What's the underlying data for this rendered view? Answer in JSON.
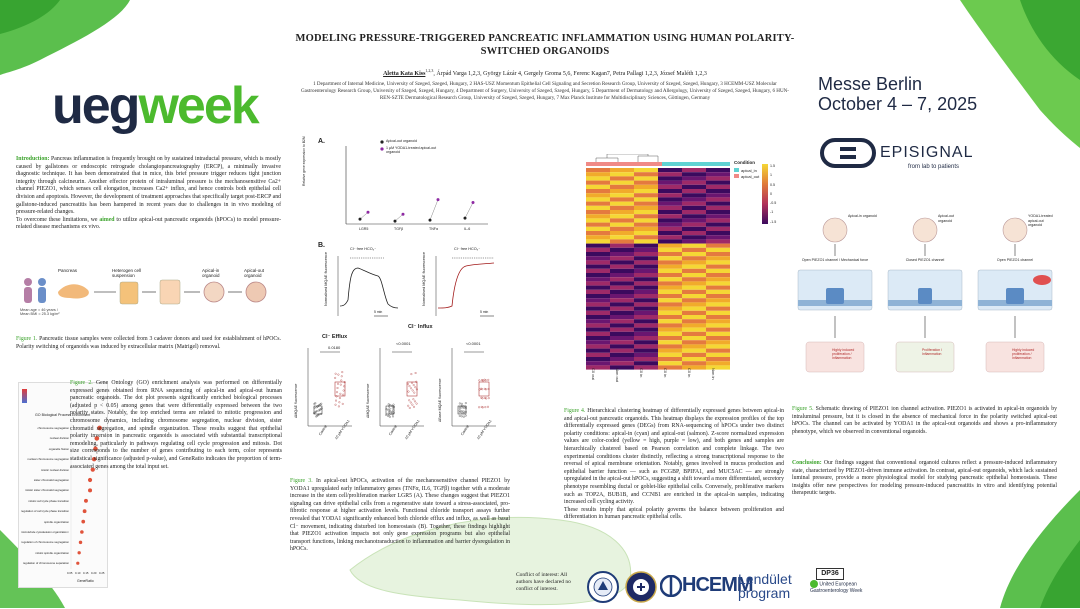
{
  "title": "MODELING PRESSURE-TRIGGERED PANCREATIC INFLAMMATION USING HUMAN POLARITY-SWITCHED ORGANOIDS",
  "authors": {
    "presenter": "Aletta Kata Kiss",
    "presenter_sup": "1,2,3",
    "others": ", Árpád Varga 1,2,3, György Lázár 4, Gergely Groma 5,6, Ferenc Kagan7, Petra Pallagi 1,2,3, József Maléth 1,2,3"
  },
  "affiliations": "1 Department of Internal Medicine, University of Szeged, Szeged, Hungary, 2 HAS-USZ Momentum Epithelial Cell Signaling and Secretion Research Group, University of Szeged, Szeged, Hungary, 3 HCEMM-USZ Molecular Gastroenterology Research Group, University of Szeged, Szeged, Hungary, 4 Department of Surgery, University of Szeged, Szeged, Hungary, 5 Department of Dermatology and Allergology, University of Szeged, Szeged, Hungary, 6 HUN-REN-SZTE Dermatological Research Group, University of Szeged, Szeged, Hungary, 7 Max Planck Institute for Multidisciplinary Sciences, Göttingen, Germany",
  "brand": {
    "ueg": "ueg",
    "week": "week",
    "messe_line1": "Messe Berlin",
    "messe_line2": "October 4 – 7, 2025",
    "episignal": "EPISIGNAL",
    "episignal_tag": "from lab to patients"
  },
  "intro": {
    "label": "Introduction:",
    "text": " Pancreas inflammation is frequently brought on by sustained intraductal pressure, which is mostly caused by gallstones or endoscopic retrograde cholangiopancreatography (ERCP), a minimally invasive diagnostic technique. It has been demonstrated that in mice, this brief pressure trigger reduces tight junction integrity through calcineurin. Another effector protein of intraluminal pressure is the mechanosensitive Ca2+ channel PIEZO1, which senses cell elongation, increases Ca2+ influx, and hence controls both epithelial cell division and apoptosis. However, the development of treatment approaches that specifically target post-ERCP and gallstone-induced pancreatitis has been hampered in recent years due to challenges in in vivo modeling of pressure-related changes.",
    "aim_pre": "To overcome these limitations, we ",
    "aim_word": "aimed",
    "aim_post": " to utilize apical-out pancreatic organoids (hPOCs) to model pressure-related disease mechanisms ex vivo."
  },
  "fig1": {
    "steps": [
      "Pancreas",
      "Heterogen cell suspension",
      "Apical-in organoid",
      "Apical-out organoid"
    ],
    "note": "Mean age = 46 years / Mean BMI = 25.3 kg/m²",
    "caption_label": "Figure 1.",
    "caption": " Pancreatic tissue samples were collected from 3 cadaver donors and used for establishment of hPOCs. Polarity switching of organoids was induced by extracellular matrix (Matrigel) removal."
  },
  "fig2": {
    "chart_title": "GO Biological Process Enrichment",
    "terms": [
      "chromosome segregation",
      "nuclear division",
      "organelle fission",
      "nuclear chromosome segregation",
      "mitotic nuclear division",
      "sister chromatid segregation",
      "mitotic sister chromatid segregation",
      "mitotic cell cycle phase transition",
      "regulation of cell cycle phase transition",
      "spindle organization",
      "microtubule cytoskeleton organization involved in mitosis",
      "regulation of chromosome segregation",
      "mitotic spindle organization",
      "regulation of chromosome separation"
    ],
    "xaxis": "GeneRatio",
    "xticks": [
      "0.05",
      "0.10",
      "0.15",
      "0.20",
      "0.25"
    ],
    "caption_label": "Figure 2.",
    "caption": " Gene Ontology (GO) enrichment analysis was performed on differentially expressed genes obtained from RNA sequencing of apical-in and apical-out human pancreatic organoids. The dot plot presents significantly enriched biological processes (adjusted p < 0.05) among genes that were differentially expressed between the two polarity states. Notably, the top enriched terms are related to mitotic progression and chromosome dynamics, including chromosome segregation, nuclear division, sister chromatid segregation, and spindle organization. These results suggest that epithelial polarity inversion in pancreatic organoids is associated with substantial transcriptional remodeling, particularly in pathways regulating cell cycle progression and mitosis. Dot size corresponds to the number of genes contributing to each term, color represents statistical significance (adjusted p-value), and GeneRatio indicates the proportion of term-associated genes among the total input set."
  },
  "fig3": {
    "legend_a": [
      "Apical-out organoid",
      "1 µM YODA1-treated apical-out organoid"
    ],
    "a_xlabels": [
      "LGR5",
      "TGFβ",
      "TNFα",
      "IL-6"
    ],
    "a_ylabel": "Relative gene expression to B2M",
    "b_label_left": "Cl⁻ free HCO₃⁻",
    "b_label_right": "Cl⁻ free HCO₃⁻",
    "b_ylabel": "Normalised MQAE fluorescence",
    "b_scale": "5 min",
    "influx_title": "Cl⁻ Influx",
    "efflux_title": "Cl⁻ Efflux",
    "pvals": [
      "0.0180",
      "<0.0001",
      "<0.0001"
    ],
    "c_ylabels": [
      "ΔMQAE fluorescence",
      "ΔMQAE fluorescence",
      "ΔBase MQAE fluorescence"
    ],
    "c_xlabels": [
      "Control",
      "10 µM YODA1"
    ],
    "caption_label": "Figure 3.",
    "caption": " In apical-out hPOCs, activation of the mechanosensitive channel PIEZO1 by YODA1 upregulated early inflammatory genes (TNFα, IL6, TGFβ) together with a moderate increase in the stem cell/proliferation marker LGR5 (A). These changes suggest that PIEZO1 signaling can drive epithelial cells from a regenerative state toward a stress-associated, pro-fibrotic response at higher activation levels. Functional chloride transport assays further revealed that YODA1 significantly enhanced both chloride efflux and influx, as well as basal Cl⁻ movement, indicating disturbed ion homeostasis (B). Together, these findings highlight that PIEZO1 activation impacts not only gene expression programs but also epithelial transport functions, linking mechanotransduction to inflammation and barrier dysregulation in hPOCs."
  },
  "fig4": {
    "legend_title": "Condition",
    "legend_items": [
      "apical_in",
      "apical_out"
    ],
    "scale_ticks": [
      "1.5",
      "1",
      "0.5",
      "0",
      "-0.5",
      "-1",
      "-1.5"
    ],
    "col_labels": [
      "C0 out",
      "Non out",
      "C0 in",
      "C0 in",
      "C0 in",
      "Non in"
    ],
    "caption_label": "Figure 4.",
    "caption": " Hierarchical clustering heatmap of differentially expressed genes between apical-in and apical-out pancreatic organoids. This heatmap displays the expression profiles of the top differentially expressed genes (DEGs) from RNA-sequencing of hPOCs under two distinct polarity conditions: apical-in (cyan) and apical-out (salmon). Z-score normalized expression values are color-coded (yellow = high, purple = low), and both genes and samples are hierarchically clustered based on Pearson correlation and complete linkage. The two experimental conditions cluster distinctly, reflecting a strong transcriptional response to the reversal of apical membrane orientation. Notably, genes involved in mucus production and epithelial barrier function — such as FCGBP, BPIFA1, and MUC5AC — are strongly upregulated in the apical-out hPOCs, suggesting a shift toward a more differentiated, secretory phenotype resembling ductal or goblet-like epithelial cells. Conversely, proliferative markers such as TOP2A, BUB1B, and CCNB1 are enriched in the apical-in samples, indicating increased cell cycling activity.",
    "caption2": "These results imply that apical polarity governs the balance between proliferation and differentiation in human pancreatic epithelial cells."
  },
  "fig5": {
    "headers": [
      "Apical-in organoid",
      "Apical-out organoid",
      "YODA1-treated apical-out organoid"
    ],
    "states": [
      "Open PIEZO1 channel / Mechanical force",
      "Closed PIEZO1 channel",
      "Open PIEZO1 channel"
    ],
    "outcomes": [
      "Highly induced proliferation / Inflammation",
      "Proliferation / Inflammation",
      "Highly induced proliferation / Inflammation"
    ],
    "caption_label": "Figure 5.",
    "caption": " Schematic drawing of PIEZO1 ion channel activation. PIEZO1 is activated in apical-in organoids by intraluminal pressure, but it is closed in the absence of mechanical force in the polarity switched apical-out hPOCs. The channel can be activated by YODA1 in the apical-out organoids and shows a pro-inflammatory phenotype, which we observed in conventional organoids."
  },
  "conclusion": {
    "label": "Conclusion:",
    "text": " Our findings suggest that conventional organoid cultures reflect a pressure-induced inflammatory state, characterized by PIEZO1-driven immune activation. In contrast, apical-out organoids, which lack sustained luminal pressure, provide a more physiological model for studying pancreatic epithelial homeostasis. These insights offer new perspectives for modeling pressure-induced pancreatitis in vitro and identifying potential therapeutic targets."
  },
  "footer": {
    "conflict": "Conflict of interest: All authors have declared no conflict of interest.",
    "hcemm": "HCEMM",
    "lendulet1": "Lendület",
    "lendulet2": "program",
    "dp": "DP36",
    "ueg_small": "United European Gastroenterology Week"
  },
  "colors": {
    "accent_green": "#3aa22a",
    "ueg_navy": "#1f2a44",
    "apical_in": "#5fd3d3",
    "apical_out": "#f08a86",
    "heat_high": "#f5d735",
    "heat_low": "#3b0a5e"
  }
}
